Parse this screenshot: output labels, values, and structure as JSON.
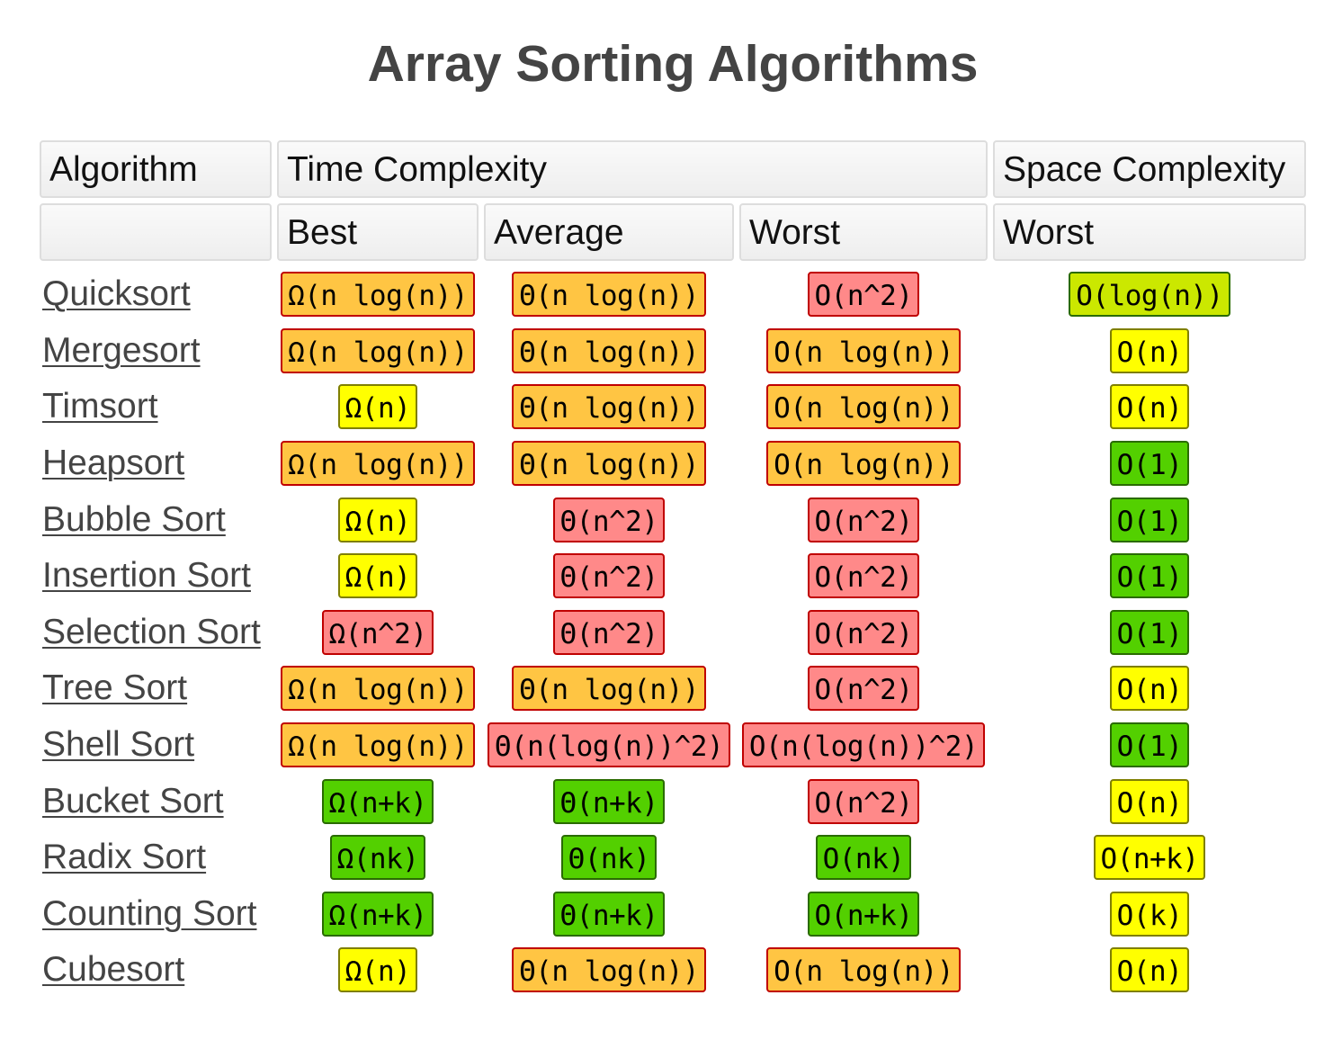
{
  "title": "Array Sorting Algorithms",
  "colors": {
    "orange": {
      "bg": "#FFC543",
      "border": "#C00000"
    },
    "red": {
      "bg": "#FF8989",
      "border": "#C00000"
    },
    "yellow": {
      "bg": "#FFFF00",
      "border": "#7F7F00"
    },
    "yellowgreen": {
      "bg": "#CBE800",
      "border": "#2A6B00"
    },
    "green": {
      "bg": "#53D000",
      "border": "#2A6B00"
    }
  },
  "headers": {
    "algorithm": "Algorithm",
    "time": "Time Complexity",
    "space": "Space Complexity",
    "best": "Best",
    "average": "Average",
    "worst": "Worst",
    "space_worst": "Worst"
  },
  "rows": [
    {
      "name": "Quicksort",
      "best": [
        "Ω(n log(n))",
        "orange"
      ],
      "average": [
        "Θ(n log(n))",
        "orange"
      ],
      "worst": [
        "O(n^2)",
        "red"
      ],
      "space": [
        "O(log(n))",
        "yellowgreen"
      ]
    },
    {
      "name": "Mergesort",
      "best": [
        "Ω(n log(n))",
        "orange"
      ],
      "average": [
        "Θ(n log(n))",
        "orange"
      ],
      "worst": [
        "O(n log(n))",
        "orange"
      ],
      "space": [
        "O(n)",
        "yellow"
      ]
    },
    {
      "name": "Timsort",
      "best": [
        "Ω(n)",
        "yellow"
      ],
      "average": [
        "Θ(n log(n))",
        "orange"
      ],
      "worst": [
        "O(n log(n))",
        "orange"
      ],
      "space": [
        "O(n)",
        "yellow"
      ]
    },
    {
      "name": "Heapsort",
      "best": [
        "Ω(n log(n))",
        "orange"
      ],
      "average": [
        "Θ(n log(n))",
        "orange"
      ],
      "worst": [
        "O(n log(n))",
        "orange"
      ],
      "space": [
        "O(1)",
        "green"
      ]
    },
    {
      "name": "Bubble Sort",
      "best": [
        "Ω(n)",
        "yellow"
      ],
      "average": [
        "Θ(n^2)",
        "red"
      ],
      "worst": [
        "O(n^2)",
        "red"
      ],
      "space": [
        "O(1)",
        "green"
      ]
    },
    {
      "name": "Insertion Sort",
      "best": [
        "Ω(n)",
        "yellow"
      ],
      "average": [
        "Θ(n^2)",
        "red"
      ],
      "worst": [
        "O(n^2)",
        "red"
      ],
      "space": [
        "O(1)",
        "green"
      ]
    },
    {
      "name": "Selection Sort",
      "best": [
        "Ω(n^2)",
        "red"
      ],
      "average": [
        "Θ(n^2)",
        "red"
      ],
      "worst": [
        "O(n^2)",
        "red"
      ],
      "space": [
        "O(1)",
        "green"
      ]
    },
    {
      "name": "Tree Sort",
      "best": [
        "Ω(n log(n))",
        "orange"
      ],
      "average": [
        "Θ(n log(n))",
        "orange"
      ],
      "worst": [
        "O(n^2)",
        "red"
      ],
      "space": [
        "O(n)",
        "yellow"
      ]
    },
    {
      "name": "Shell Sort",
      "best": [
        "Ω(n log(n))",
        "orange"
      ],
      "average": [
        "Θ(n(log(n))^2)",
        "red"
      ],
      "worst": [
        "O(n(log(n))^2)",
        "red"
      ],
      "space": [
        "O(1)",
        "green"
      ]
    },
    {
      "name": "Bucket Sort",
      "best": [
        "Ω(n+k)",
        "green"
      ],
      "average": [
        "Θ(n+k)",
        "green"
      ],
      "worst": [
        "O(n^2)",
        "red"
      ],
      "space": [
        "O(n)",
        "yellow"
      ]
    },
    {
      "name": "Radix Sort",
      "best": [
        "Ω(nk)",
        "green"
      ],
      "average": [
        "Θ(nk)",
        "green"
      ],
      "worst": [
        "O(nk)",
        "green"
      ],
      "space": [
        "O(n+k)",
        "yellow"
      ]
    },
    {
      "name": "Counting Sort",
      "best": [
        "Ω(n+k)",
        "green"
      ],
      "average": [
        "Θ(n+k)",
        "green"
      ],
      "worst": [
        "O(n+k)",
        "green"
      ],
      "space": [
        "O(k)",
        "yellow"
      ]
    },
    {
      "name": "Cubesort",
      "best": [
        "Ω(n)",
        "yellow"
      ],
      "average": [
        "Θ(n log(n))",
        "orange"
      ],
      "worst": [
        "O(n log(n))",
        "orange"
      ],
      "space": [
        "O(n)",
        "yellow"
      ]
    }
  ]
}
